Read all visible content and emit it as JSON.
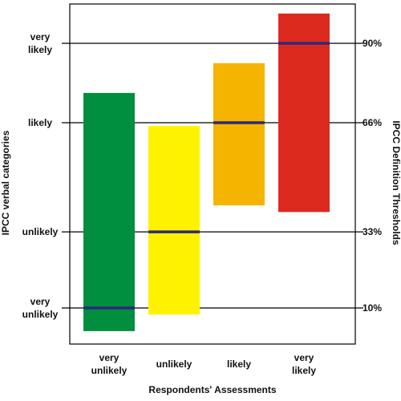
{
  "chart_data": {
    "type": "bar",
    "subtype": "floating-range",
    "xlabel": "Respondents' Assessments",
    "ylabel_left": "IPCC verbal categories",
    "ylabel_right": "IPCC Definition Thresholds",
    "ylim": [
      0,
      100
    ],
    "left_ticks": [
      {
        "value": 90,
        "lines": [
          "very",
          "likely"
        ]
      },
      {
        "value": 66,
        "lines": [
          "likely"
        ]
      },
      {
        "value": 33,
        "lines": [
          "unlikely"
        ]
      },
      {
        "value": 10,
        "lines": [
          "very",
          "unlikely"
        ]
      }
    ],
    "right_ticks": [
      {
        "value": 90,
        "label": "90%"
      },
      {
        "value": 66,
        "label": "66%"
      },
      {
        "value": 33,
        "label": "33%"
      },
      {
        "value": 10,
        "label": "10%"
      }
    ],
    "categories": [
      {
        "lines": [
          "very",
          "unlikely"
        ]
      },
      {
        "lines": [
          "unlikely"
        ]
      },
      {
        "lines": [
          "likely"
        ]
      },
      {
        "lines": [
          "very",
          "likely"
        ]
      }
    ],
    "bars": [
      {
        "low": 3,
        "high": 75,
        "marker": 10,
        "color": "#008f3f"
      },
      {
        "low": 8,
        "high": 65,
        "marker": 33,
        "color": "#fff200"
      },
      {
        "low": 41,
        "high": 84,
        "marker": 66,
        "color": "#f5b400"
      },
      {
        "low": 39,
        "high": 99,
        "marker": 90,
        "color": "#dd2a1f"
      }
    ],
    "marker_color": "#2b2a7a",
    "gridlines": true
  }
}
